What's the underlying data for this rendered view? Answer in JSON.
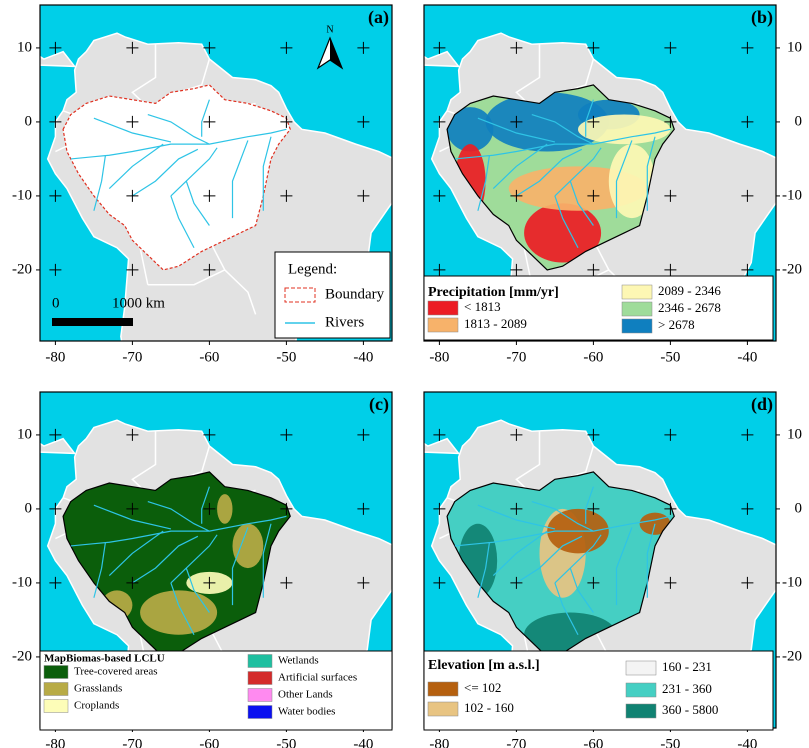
{
  "axes": {
    "xticks": [
      -80,
      -70,
      -60,
      -50,
      -40
    ],
    "yticks": [
      -20,
      -10,
      0,
      10
    ]
  },
  "panels": [
    {
      "label": "(a)",
      "north": "N",
      "scale": {
        "start": "0",
        "end": "1000 km"
      },
      "legend": {
        "title": "Legend:",
        "items": [
          {
            "label": "Boundary",
            "color": "#e03020"
          },
          {
            "label": "Rivers",
            "color": "#2ec4e6"
          }
        ]
      }
    },
    {
      "label": "(b)",
      "legend": {
        "title": "Precipitation [mm/yr]",
        "items": [
          {
            "label": "< 1813",
            "color": "#ec1c24"
          },
          {
            "label": "1813 - 2089",
            "color": "#f7b26a"
          },
          {
            "label": "2089 - 2346",
            "color": "#fdf7b4"
          },
          {
            "label": "2346 - 2678",
            "color": "#9fdc9a"
          },
          {
            "label": "> 2678",
            "color": "#0f7fbf"
          }
        ]
      }
    },
    {
      "label": "(c)",
      "legend": {
        "title": "MapBiomas-based LCLU",
        "items": [
          {
            "label": "Tree-covered areas",
            "color": "#0b5e0b"
          },
          {
            "label": "Grasslands",
            "color": "#b8ab46"
          },
          {
            "label": "Croplands",
            "color": "#fdfdb8"
          },
          {
            "label": "Wetlands",
            "color": "#1fbfa0"
          },
          {
            "label": "Artificial surfaces",
            "color": "#d42a2a"
          },
          {
            "label": "Other Lands",
            "color": "#ff8af0"
          },
          {
            "label": "Water bodies",
            "color": "#0a10f0"
          }
        ]
      }
    },
    {
      "label": "(d)",
      "legend": {
        "title": "Elevation [m a.s.l.]",
        "items": [
          {
            "label": "<= 102",
            "color": "#b5600f"
          },
          {
            "label": "102 - 160",
            "color": "#e8c482"
          },
          {
            "label": "160 - 231",
            "color": "#f4f4f4"
          },
          {
            "label": "231 - 360",
            "color": "#45cfc3"
          },
          {
            "label": "360 - 5800",
            "color": "#108272"
          }
        ]
      }
    }
  ]
}
